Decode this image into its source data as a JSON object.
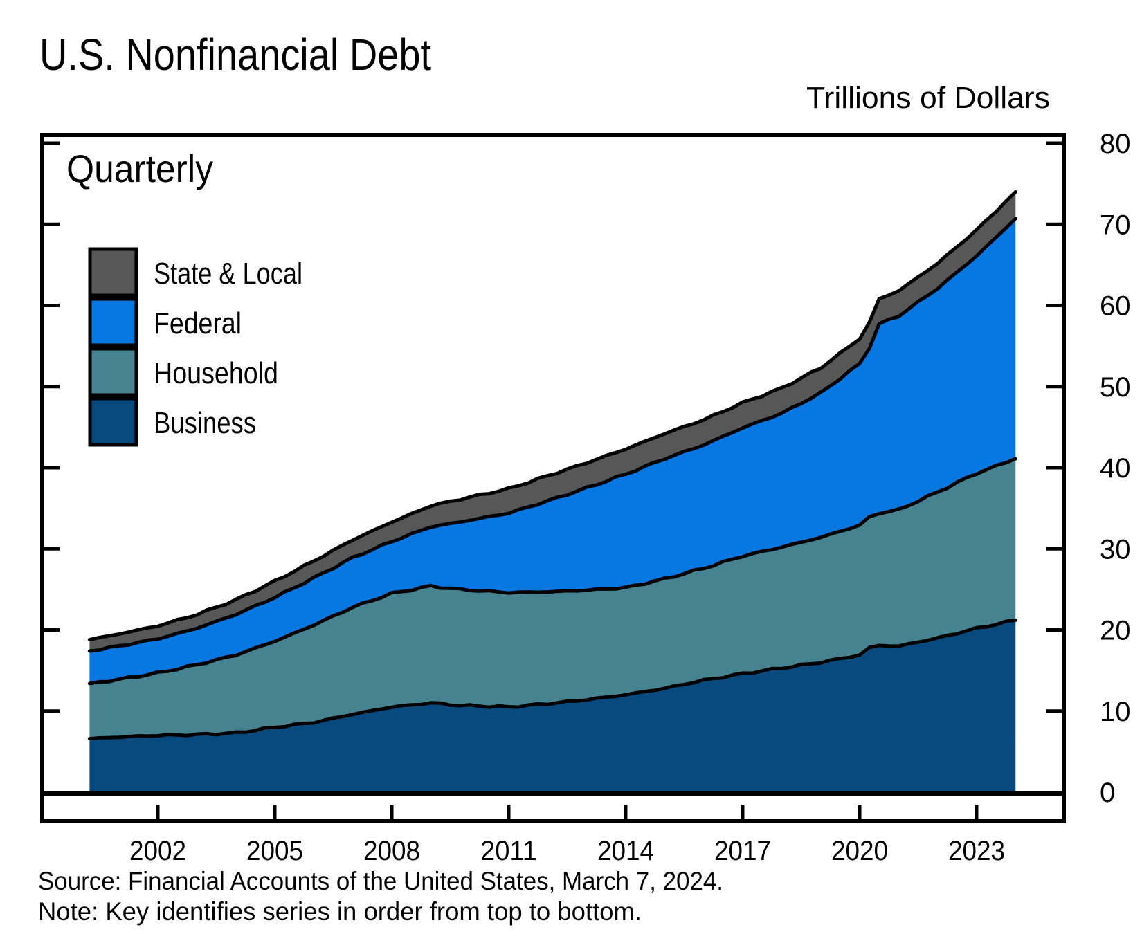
{
  "title": "U.S. Nonfinancial Debt",
  "unit_label": "Trillions of Dollars",
  "frequency_label": "Quarterly",
  "source_line": "Source: Financial Accounts of the United States, March 7, 2024.",
  "note_line": "Note: Key identifies series in order from top to bottom.",
  "colors": {
    "state_local": "#575757",
    "federal": "#0777e2",
    "household": "#46828f",
    "business": "#084a7e",
    "line": "#000000",
    "background": "#ffffff"
  },
  "legend": [
    {
      "label": "State & Local",
      "color": "#575757"
    },
    {
      "label": "Federal",
      "color": "#0777e2"
    },
    {
      "label": "Household",
      "color": "#46828f"
    },
    {
      "label": "Business",
      "color": "#084a7e"
    }
  ],
  "chart_data": {
    "type": "area",
    "stacked": true,
    "title": "U.S. Nonfinancial Debt",
    "ylabel": "Trillions of Dollars",
    "frequency": "Quarterly",
    "ylim": [
      0,
      80
    ],
    "y_ticks": [
      0,
      10,
      20,
      30,
      40,
      50,
      60,
      70,
      80
    ],
    "x_ticks": [
      2002,
      2005,
      2008,
      2011,
      2014,
      2017,
      2020,
      2023
    ],
    "x_start": 2000.25,
    "x_end": 2024.0,
    "x_step": 0.25,
    "anchors_x": [
      2000.25,
      2001,
      2002,
      2003,
      2004,
      2005,
      2006,
      2007,
      2008,
      2009,
      2009.75,
      2011,
      2012,
      2013,
      2014,
      2015,
      2016,
      2017,
      2018,
      2019,
      2020,
      2020.25,
      2020.5,
      2021,
      2022,
      2023,
      2024
    ],
    "series": [
      {
        "name": "Business",
        "color": "#084a7e",
        "values": [
          6.6,
          6.8,
          7.0,
          7.1,
          7.3,
          8.0,
          8.6,
          9.6,
          10.5,
          11.0,
          10.7,
          10.5,
          10.9,
          11.4,
          12.0,
          12.8,
          13.8,
          14.6,
          15.3,
          16.0,
          16.9,
          17.8,
          18.1,
          18.0,
          19.0,
          20.2,
          21.2
        ]
      },
      {
        "name": "Household",
        "color": "#46828f",
        "values": [
          6.8,
          7.1,
          7.7,
          8.6,
          9.6,
          10.6,
          12.0,
          13.2,
          14.0,
          14.4,
          14.3,
          14.1,
          13.8,
          13.5,
          13.2,
          13.5,
          13.8,
          14.5,
          14.9,
          15.4,
          16.0,
          16.1,
          16.3,
          16.8,
          18.0,
          19.1,
          19.9
        ]
      },
      {
        "name": "Federal",
        "color": "#0777e2",
        "values": [
          4.0,
          4.1,
          4.2,
          4.5,
          5.0,
          5.4,
          5.8,
          6.1,
          6.4,
          7.3,
          8.3,
          9.8,
          11.2,
          12.6,
          14.0,
          14.8,
          15.2,
          15.8,
          16.5,
          17.8,
          19.9,
          20.9,
          23.3,
          23.9,
          25.1,
          26.8,
          29.6
        ]
      },
      {
        "name": "State & Local",
        "color": "#575757",
        "values": [
          1.4,
          1.5,
          1.6,
          1.7,
          1.8,
          2.0,
          2.1,
          2.2,
          2.4,
          2.6,
          2.8,
          3.0,
          3.1,
          3.1,
          3.1,
          3.1,
          3.1,
          3.1,
          3.1,
          3.1,
          3.1,
          3.1,
          3.1,
          3.1,
          3.1,
          3.2,
          3.3
        ]
      }
    ],
    "legend_order_top_to_bottom": [
      "State & Local",
      "Federal",
      "Household",
      "Business"
    ],
    "legend_position": "upper-left-inside",
    "grid": false,
    "y_axis_labels_side": "right"
  }
}
